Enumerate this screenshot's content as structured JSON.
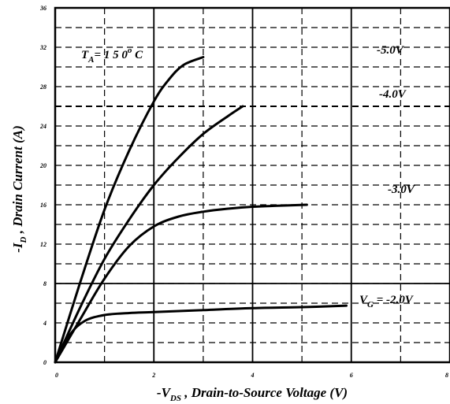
{
  "chart_data": {
    "type": "line",
    "xlabel": {
      "prefix": "-V",
      "sub": "DS",
      "suffix": " , Drain-to-Source Voltage (V)"
    },
    "ylabel": {
      "prefix": "-I",
      "sub": "D",
      "suffix": " , Drain  Current (A)"
    },
    "xlim": [
      0,
      8
    ],
    "ylim": [
      0,
      36
    ],
    "x_ticks": [
      0,
      2,
      4,
      6,
      8
    ],
    "y_ticks": [
      0,
      4,
      8,
      12,
      16,
      20,
      24,
      28,
      32,
      36
    ],
    "x_tick_labels": [
      "0",
      "2",
      "4",
      "6",
      "8"
    ],
    "y_tick_labels": [
      "0",
      "4",
      "8",
      "12",
      "16",
      "20",
      "24",
      "28",
      "32",
      "36"
    ],
    "grid": "dashed",
    "annotations": {
      "temperature": {
        "prefix": "T",
        "sub": "A",
        "value": "= 1 5 0",
        "sup": "o",
        "unit": " C"
      }
    },
    "series": [
      {
        "label_prefix": "V",
        "label_sub": "G",
        "label_value": " = -2.0V",
        "x": [
          0,
          0.3,
          0.6,
          1.0,
          1.5,
          2.0,
          3.0,
          4.0,
          5.0,
          5.9
        ],
        "y": [
          0,
          2.8,
          4.2,
          4.8,
          5.0,
          5.1,
          5.3,
          5.5,
          5.6,
          5.75
        ]
      },
      {
        "label": "-3.0V",
        "x": [
          0,
          0.5,
          1.0,
          1.5,
          2.0,
          2.5,
          3.0,
          3.5,
          4.0,
          4.5,
          5.1
        ],
        "y": [
          0,
          4.3,
          8.5,
          11.8,
          13.8,
          14.8,
          15.3,
          15.6,
          15.8,
          15.9,
          16.0
        ]
      },
      {
        "label": "-4.0V",
        "x": [
          0,
          0.5,
          1.0,
          1.5,
          2.0,
          2.5,
          3.0,
          3.5,
          3.8
        ],
        "y": [
          0,
          5.5,
          10.5,
          14.5,
          18.0,
          20.8,
          23.2,
          25.0,
          26.0
        ]
      },
      {
        "label": "-5.0V",
        "x": [
          0,
          0.5,
          1.0,
          1.5,
          2.0,
          2.3,
          2.6,
          3.0
        ],
        "y": [
          0,
          8.0,
          15.5,
          21.5,
          26.5,
          28.7,
          30.2,
          31.0
        ]
      }
    ]
  }
}
